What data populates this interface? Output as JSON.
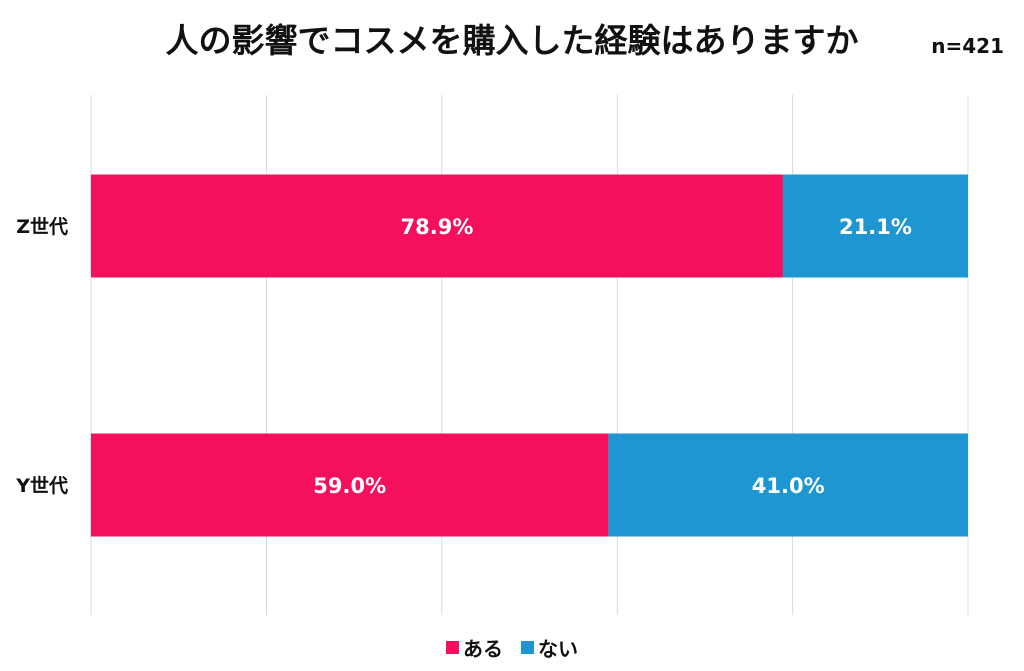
{
  "chart_data": {
    "type": "bar",
    "orientation": "horizontal",
    "stacked": true,
    "title": "人の影響でコスメを購入した経験はありますか",
    "annotation": "n=421",
    "categories": [
      "Z世代",
      "Y世代"
    ],
    "series": [
      {
        "name": "ある",
        "values": [
          78.9,
          59.0
        ],
        "labels": [
          "78.9%",
          "59.0%"
        ],
        "color": "#F50F5F"
      },
      {
        "name": "ない",
        "values": [
          21.1,
          41.0
        ],
        "labels": [
          "21.1%",
          "41.0%"
        ],
        "color": "#1E96D2"
      }
    ],
    "xlim": [
      0,
      100
    ],
    "grid": true,
    "legend_position": "bottom"
  }
}
